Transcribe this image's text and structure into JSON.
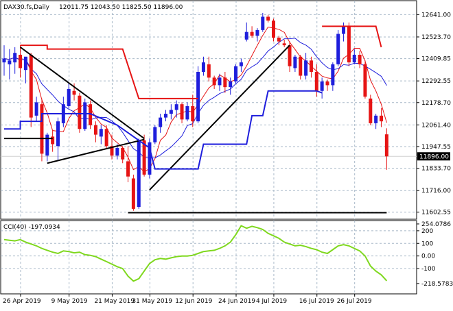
{
  "chart_data": [
    {
      "type": "candlestick",
      "title": "DAX30.fs,Daily",
      "ohlc_label": "12011.75 12043.50 11825.50 11896.00",
      "current_price": "11896.00",
      "ylim": [
        11580,
        12700
      ],
      "y_ticks": [
        "12641.00",
        "12523.70",
        "12409.85",
        "12292.55",
        "12178.70",
        "12061.40",
        "11947.55",
        "11833.70",
        "11716.00",
        "11602.55"
      ],
      "x_tick_labels": [
        "26 Apr 2019",
        "9 May 2019",
        "21 May 2019",
        "31 May 2019",
        "12 Jun 2019",
        "24 Jun 2019",
        "4 Jul 2019",
        "16 Jul 2019",
        "26 Jul 2019"
      ],
      "x_tick_indices": [
        0,
        9,
        17,
        24,
        32,
        40,
        47,
        55,
        62
      ],
      "candles": [
        {
          "o": 12390,
          "h": 12480,
          "l": 12320,
          "c": 12410
        },
        {
          "o": 12380,
          "h": 12460,
          "l": 12300,
          "c": 12400
        },
        {
          "o": 12390,
          "h": 12470,
          "l": 12330,
          "c": 12440
        },
        {
          "o": 12430,
          "h": 12480,
          "l": 12310,
          "c": 12360
        },
        {
          "o": 12350,
          "h": 12410,
          "l": 12280,
          "c": 12420
        },
        {
          "o": 12430,
          "h": 12440,
          "l": 12050,
          "c": 12100
        },
        {
          "o": 12110,
          "h": 12210,
          "l": 12080,
          "c": 12180
        },
        {
          "o": 12170,
          "h": 12200,
          "l": 11870,
          "c": 11910
        },
        {
          "o": 11900,
          "h": 12020,
          "l": 11870,
          "c": 12010
        },
        {
          "o": 12000,
          "h": 12030,
          "l": 11920,
          "c": 11960
        },
        {
          "o": 11950,
          "h": 12100,
          "l": 11870,
          "c": 12080
        },
        {
          "o": 12070,
          "h": 12210,
          "l": 12050,
          "c": 12170
        },
        {
          "o": 12160,
          "h": 12280,
          "l": 12150,
          "c": 12250
        },
        {
          "o": 12240,
          "h": 12280,
          "l": 12190,
          "c": 12220
        },
        {
          "o": 12215,
          "h": 12230,
          "l": 12020,
          "c": 12040
        },
        {
          "o": 12040,
          "h": 12200,
          "l": 12030,
          "c": 12180
        },
        {
          "o": 12170,
          "h": 12190,
          "l": 12040,
          "c": 12060
        },
        {
          "o": 12060,
          "h": 12080,
          "l": 11970,
          "c": 12010
        },
        {
          "o": 12000,
          "h": 12060,
          "l": 11960,
          "c": 12040
        },
        {
          "o": 12040,
          "h": 12060,
          "l": 11940,
          "c": 11950
        },
        {
          "o": 11950,
          "h": 12010,
          "l": 11880,
          "c": 11900
        },
        {
          "o": 11900,
          "h": 11960,
          "l": 11880,
          "c": 11940
        },
        {
          "o": 11940,
          "h": 11950,
          "l": 11860,
          "c": 11880
        },
        {
          "o": 11870,
          "h": 11950,
          "l": 11760,
          "c": 11790
        },
        {
          "o": 11780,
          "h": 11800,
          "l": 11610,
          "c": 11620
        },
        {
          "o": 11630,
          "h": 11990,
          "l": 11620,
          "c": 11980
        },
        {
          "o": 11980,
          "h": 12010,
          "l": 11790,
          "c": 11800
        },
        {
          "o": 11800,
          "h": 11990,
          "l": 11780,
          "c": 11970
        },
        {
          "o": 11970,
          "h": 12060,
          "l": 11960,
          "c": 12050
        },
        {
          "o": 12050,
          "h": 12120,
          "l": 12020,
          "c": 12100
        },
        {
          "o": 12100,
          "h": 12140,
          "l": 12080,
          "c": 12120
        },
        {
          "o": 12120,
          "h": 12170,
          "l": 12090,
          "c": 12140
        },
        {
          "o": 12140,
          "h": 12190,
          "l": 12100,
          "c": 12170
        },
        {
          "o": 12170,
          "h": 12180,
          "l": 12070,
          "c": 12090
        },
        {
          "o": 12090,
          "h": 12180,
          "l": 12080,
          "c": 12160
        },
        {
          "o": 12160,
          "h": 12220,
          "l": 12050,
          "c": 12080
        },
        {
          "o": 12080,
          "h": 12370,
          "l": 12070,
          "c": 12340
        },
        {
          "o": 12340,
          "h": 12420,
          "l": 12320,
          "c": 12390
        },
        {
          "o": 12380,
          "h": 12420,
          "l": 12290,
          "c": 12310
        },
        {
          "o": 12310,
          "h": 12320,
          "l": 12250,
          "c": 12270
        },
        {
          "o": 12270,
          "h": 12330,
          "l": 12240,
          "c": 12310
        },
        {
          "o": 12310,
          "h": 12340,
          "l": 12230,
          "c": 12260
        },
        {
          "o": 12260,
          "h": 12310,
          "l": 12220,
          "c": 12290
        },
        {
          "o": 12290,
          "h": 12380,
          "l": 12280,
          "c": 12370
        },
        {
          "o": 12370,
          "h": 12410,
          "l": 12340,
          "c": 12390
        },
        {
          "o": 12510,
          "h": 12600,
          "l": 12500,
          "c": 12550
        },
        {
          "o": 12550,
          "h": 12580,
          "l": 12520,
          "c": 12530
        },
        {
          "o": 12530,
          "h": 12570,
          "l": 12500,
          "c": 12560
        },
        {
          "o": 12560,
          "h": 12650,
          "l": 12550,
          "c": 12630
        },
        {
          "o": 12630,
          "h": 12640,
          "l": 12600,
          "c": 12610
        },
        {
          "o": 12610,
          "h": 12620,
          "l": 12500,
          "c": 12520
        },
        {
          "o": 12520,
          "h": 12530,
          "l": 12480,
          "c": 12500
        },
        {
          "o": 12490,
          "h": 12510,
          "l": 12470,
          "c": 12480
        },
        {
          "o": 12480,
          "h": 12500,
          "l": 12340,
          "c": 12370
        },
        {
          "o": 12360,
          "h": 12430,
          "l": 12340,
          "c": 12420
        },
        {
          "o": 12420,
          "h": 12430,
          "l": 12300,
          "c": 12320
        },
        {
          "o": 12320,
          "h": 12440,
          "l": 12300,
          "c": 12400
        },
        {
          "o": 12400,
          "h": 12420,
          "l": 12310,
          "c": 12340
        },
        {
          "o": 12340,
          "h": 12380,
          "l": 12210,
          "c": 12240
        },
        {
          "o": 12240,
          "h": 12310,
          "l": 12200,
          "c": 12290
        },
        {
          "o": 12290,
          "h": 12300,
          "l": 12240,
          "c": 12270
        },
        {
          "o": 12270,
          "h": 12390,
          "l": 12240,
          "c": 12380
        },
        {
          "o": 12380,
          "h": 12560,
          "l": 12370,
          "c": 12540
        },
        {
          "o": 12540,
          "h": 12600,
          "l": 12500,
          "c": 12580
        },
        {
          "o": 12580,
          "h": 12600,
          "l": 12370,
          "c": 12390
        },
        {
          "o": 12390,
          "h": 12460,
          "l": 12380,
          "c": 12430
        },
        {
          "o": 12430,
          "h": 12450,
          "l": 12360,
          "c": 12380
        },
        {
          "o": 12380,
          "h": 12400,
          "l": 12200,
          "c": 12210
        },
        {
          "o": 12200,
          "h": 12220,
          "l": 12060,
          "c": 12070
        },
        {
          "o": 12070,
          "h": 12120,
          "l": 12040,
          "c": 12110
        },
        {
          "o": 12110,
          "h": 12150,
          "l": 12050,
          "c": 12080
        },
        {
          "o": 12011.75,
          "h": 12043.5,
          "l": 11825.5,
          "c": 11896
        }
      ],
      "colors": {
        "up": "#1e1edc",
        "down": "#e61414",
        "trend": "#000000",
        "red_line": "#e61414",
        "blue_line": "#1e1edc",
        "ma_fast": "#e61414",
        "ma_slow": "#1e1edc",
        "grid": "#a8b8c8",
        "current": "#d0d0d0"
      }
    },
    {
      "type": "line",
      "title": "CCI(40) -197.0934",
      "ylim": [
        -290,
        270
      ],
      "y_ticks": [
        "254.0786",
        "200",
        "100",
        "0.00",
        "-100",
        "-218.5783"
      ],
      "x_tick_labels": [
        "26 Apr 2019",
        "9 May 2019",
        "21 May 2019",
        "31 May 2019",
        "12 Jun 2019",
        "24 Jun 2019",
        "4 Jul 2019",
        "16 Jul 2019",
        "26 Jul 2019"
      ],
      "series": [
        {
          "values": [
            130,
            125,
            120,
            130,
            110,
            95,
            80,
            60,
            45,
            30,
            20,
            40,
            35,
            25,
            30,
            10,
            5,
            -5,
            -25,
            -45,
            -65,
            -85,
            -100,
            -160,
            -200,
            -180,
            -120,
            -60,
            -30,
            -20,
            -25,
            -15,
            -5,
            0,
            0,
            5,
            20,
            35,
            40,
            45,
            60,
            80,
            110,
            170,
            240,
            220,
            235,
            225,
            210,
            180,
            160,
            140,
            110,
            95,
            80,
            85,
            75,
            60,
            50,
            30,
            20,
            50,
            80,
            90,
            80,
            60,
            40,
            0,
            -80,
            -120,
            -150,
            -197.09
          ]
        }
      ],
      "colors": {
        "line": "#7fd81e",
        "grid": "#a8b8c8"
      }
    }
  ]
}
